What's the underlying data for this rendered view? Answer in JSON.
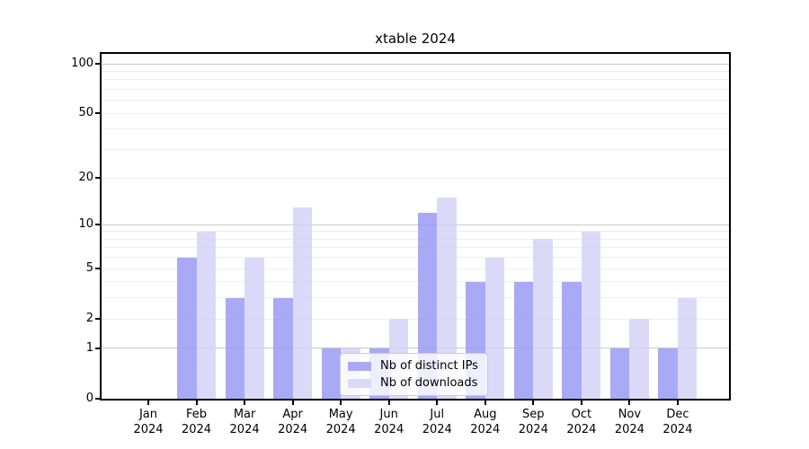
{
  "figure_title": "xtable 2024",
  "chart_data": {
    "type": "bar",
    "title": "xtable 2024",
    "categories": [
      "Jan",
      "Feb",
      "Mar",
      "Apr",
      "May",
      "Jun",
      "Jul",
      "Aug",
      "Sep",
      "Oct",
      "Nov",
      "Dec"
    ],
    "category_year": "2024",
    "series": [
      {
        "name": "Nb of distinct IPs",
        "color": "#a9a9f5",
        "values": [
          0,
          6,
          3,
          3,
          1,
          1,
          12,
          4,
          4,
          4,
          1,
          1
        ]
      },
      {
        "name": "Nb of downloads",
        "color": "#dadaf8",
        "values": [
          0,
          9,
          6,
          13,
          1,
          2,
          15,
          6,
          8,
          9,
          2,
          3
        ]
      }
    ],
    "xlabel": "",
    "ylabel": "",
    "y_scale": "log1p",
    "ylim": [
      0,
      115
    ],
    "y_ticks": [
      0,
      1,
      2,
      5,
      10,
      20,
      50,
      100
    ],
    "y_major_gridlines": [
      1,
      10,
      100
    ],
    "y_minor_gridlines": [
      2,
      3,
      4,
      5,
      6,
      7,
      8,
      9,
      20,
      30,
      40,
      50,
      60,
      70,
      80,
      90
    ],
    "grid": true,
    "legend": {
      "entries": [
        "Nb of distinct IPs",
        "Nb of downloads"
      ],
      "position": "lower center"
    },
    "colors": {
      "major_grid": "#c9c9c9",
      "minor_grid": "#ededed",
      "spine": "#000000",
      "text": "#000000",
      "legend_border": "#cccccc"
    }
  }
}
